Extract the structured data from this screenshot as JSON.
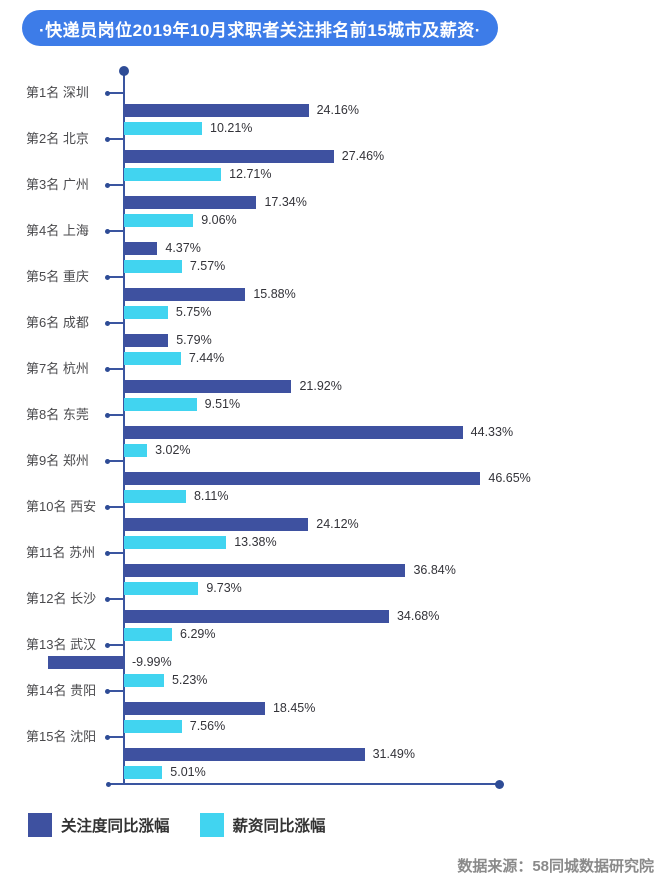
{
  "header": {
    "title": "·快递员岗位2019年10月求职者关注排名前15城市及薪资·",
    "pill_color": "#3d7ce8"
  },
  "legend": {
    "items": [
      {
        "label": "关注度同比涨幅",
        "color": "#3e51a0"
      },
      {
        "label": "薪资同比涨幅",
        "color": "#41d4f0"
      }
    ]
  },
  "footer": {
    "source": "数据来源：58同城数据研究院"
  },
  "chart_data": {
    "type": "bar",
    "orientation": "horizontal",
    "title": "快递员岗位2019年10月求职者关注排名前15城市及薪资",
    "categories": [
      "第1名 深圳",
      "第2名 北京",
      "第3名 广州",
      "第4名 上海",
      "第5名 重庆",
      "第6名 成都",
      "第7名 杭州",
      "第8名 东莞",
      "第9名 郑州",
      "第10名 西安",
      "第11名 苏州",
      "第12名 长沙",
      "第13名 武汉",
      "第14名 贵阳",
      "第15名 沈阳"
    ],
    "series": [
      {
        "name": "关注度同比涨幅",
        "color": "#3e51a0",
        "values": [
          24.16,
          27.46,
          17.34,
          4.37,
          15.88,
          5.79,
          21.92,
          44.33,
          46.65,
          24.12,
          36.84,
          34.68,
          -9.99,
          18.45,
          31.49
        ],
        "labels": [
          "24.16%",
          "27.46%",
          "17.34%",
          "4.37%",
          "15.88%",
          "5.79%",
          "21.92%",
          "44.33%",
          "46.65%",
          "24.12%",
          "36.84%",
          "34.68%",
          "-9.99%",
          "18.45%",
          "31.49%"
        ]
      },
      {
        "name": "薪资同比涨幅",
        "color": "#41d4f0",
        "values": [
          10.21,
          12.71,
          9.06,
          7.57,
          5.75,
          7.44,
          9.51,
          3.02,
          8.11,
          13.38,
          9.73,
          6.29,
          5.23,
          7.56,
          5.01
        ],
        "labels": [
          "10.21%",
          "12.71%",
          "9.06%",
          "7.57%",
          "5.75%",
          "7.44%",
          "9.51%",
          "3.02%",
          "8.11%",
          "13.38%",
          "9.73%",
          "6.29%",
          "5.23%",
          "7.56%",
          "5.01%"
        ]
      }
    ],
    "value_suffix": "%",
    "xlim": [
      -10,
      50
    ],
    "grid": false,
    "legend_position": "bottom-left",
    "axis_color": "#3a55a0"
  }
}
